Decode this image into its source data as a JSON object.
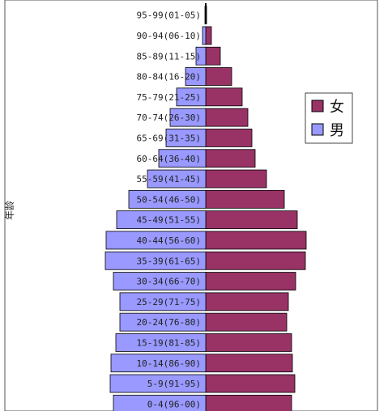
{
  "chart_data": {
    "type": "bar",
    "orientation": "horizontal",
    "subtype": "population-pyramid",
    "title": "",
    "xlabel": "",
    "ylabel": "年龄",
    "categories": [
      "95-99(01-05)",
      "90-94(06-10)",
      "85-89(11-15)",
      "80-84(16-20)",
      "75-79(21-25)",
      "70-74(26-30)",
      "65-69(31-35)",
      "60-64(36-40)",
      "55-59(41-45)",
      "50-54(46-50)",
      "45-49(51-55)",
      "40-44(56-60)",
      "35-39(61-65)",
      "30-34(66-70)",
      "25-29(71-75)",
      "20-24(76-80)",
      "15-19(81-85)",
      "10-14(86-90)",
      "5-9(91-95)",
      "0-4(96-00)"
    ],
    "series": [
      {
        "name": "女",
        "side": "right",
        "color": "#993366",
        "values": [
          1,
          7,
          18,
          32,
          45,
          52,
          57,
          61,
          75,
          97,
          113,
          124,
          123,
          111,
          102,
          100,
          106,
          107,
          110,
          106
        ]
      },
      {
        "name": "男",
        "side": "left",
        "color": "#9999ff",
        "values": [
          1,
          4,
          12,
          25,
          36,
          44,
          49,
          58,
          72,
          95,
          110,
          123,
          124,
          114,
          106,
          106,
          111,
          117,
          118,
          114
        ]
      }
    ],
    "grid": false,
    "legend": {
      "position": "right",
      "entries": [
        "女",
        "男"
      ]
    }
  }
}
